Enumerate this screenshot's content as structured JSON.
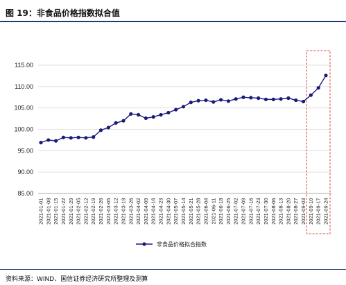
{
  "header": {
    "title": "图 19：非食品价格指数拟合值"
  },
  "footer": {
    "source": "资料来源：WIND、国信证券经济研究所整理及测算"
  },
  "colors": {
    "series": "#1a1a7a",
    "highlight": "#e0413a",
    "header_rule": "#1f3a78"
  },
  "chart_data": {
    "type": "line",
    "grid": true,
    "legend_position": "bottom-center",
    "ylim": [
      85,
      115
    ],
    "yticks": [
      "85.00",
      "90.00",
      "95.00",
      "100.00",
      "105.00",
      "110.00",
      "115.00"
    ],
    "categories": [
      "2021-01-01",
      "2021-01-08",
      "2021-01-15",
      "2021-01-22",
      "2021-01-29",
      "2021-02-05",
      "2021-02-12",
      "2021-02-19",
      "2021-02-26",
      "2021-03-05",
      "2021-03-12",
      "2021-03-19",
      "2021-03-26",
      "2021-04-02",
      "2021-04-09",
      "2021-04-16",
      "2021-04-23",
      "2021-04-30",
      "2021-05-07",
      "2021-05-14",
      "2021-05-21",
      "2021-05-28",
      "2021-06-04",
      "2021-06-11",
      "2021-06-18",
      "2021-06-25",
      "2021-07-02",
      "2021-07-09",
      "2021-07-16",
      "2021-07-23",
      "2021-07-30",
      "2021-08-06",
      "2021-08-13",
      "2021-08-20",
      "2021-08-27",
      "2021-09-03",
      "2021-09-10",
      "2021-09-17",
      "2021-09-24"
    ],
    "series": [
      {
        "name": "非食品价格拟合指数",
        "values": [
          96.9,
          97.5,
          97.3,
          98.1,
          98.0,
          98.1,
          98.0,
          98.2,
          99.8,
          100.4,
          101.5,
          102.0,
          103.6,
          103.4,
          102.6,
          102.9,
          103.4,
          103.9,
          104.6,
          105.3,
          106.3,
          106.7,
          106.8,
          106.4,
          106.9,
          106.6,
          107.1,
          107.5,
          107.4,
          107.3,
          107.0,
          107.0,
          107.1,
          107.3,
          106.8,
          106.5,
          108.0,
          109.7,
          112.6
        ]
      }
    ],
    "highlight_range": [
      "2021-09-10",
      "2021-09-24"
    ]
  }
}
